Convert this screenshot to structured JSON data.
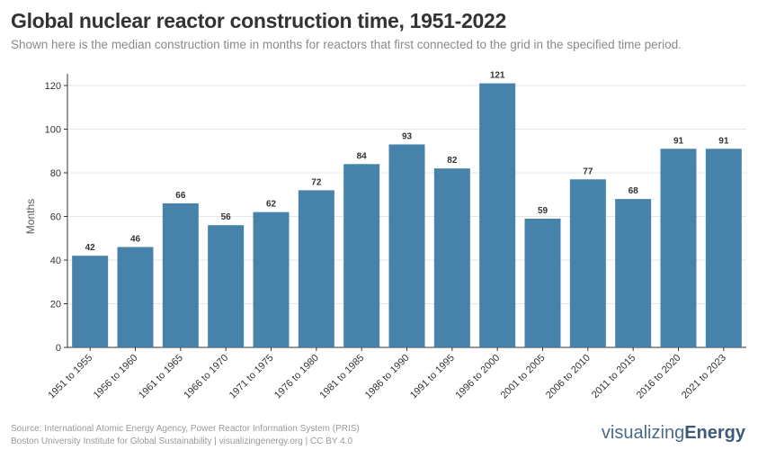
{
  "title": "Global nuclear reactor construction time, 1951-2022",
  "subtitle": "Shown here is the median construction time in months for reactors that first connected to the grid in the specified time period.",
  "source_line1": "Source: International Atomic Energy Agency, Power Reactor Information System (PRIS)",
  "source_line2": "Boston University Institute for Global Sustainability | visualizingenergy.org | CC BY 4.0",
  "logo": {
    "part1": "visualizing",
    "part2": "Energy"
  },
  "colors": {
    "bar": "#3d7ba6",
    "text": "#333333"
  },
  "chart_data": {
    "type": "bar",
    "title": "Global nuclear reactor construction time, 1951-2022",
    "xlabel": "",
    "ylabel": "Months",
    "ylim": [
      0,
      130
    ],
    "yticks": [
      0,
      20,
      40,
      60,
      80,
      100,
      120
    ],
    "grid": true,
    "categories": [
      "1951 to 1955",
      "1956 to 1960",
      "1961 to 1965",
      "1966 to 1970",
      "1971 to 1975",
      "1976 to 1980",
      "1981 to 1985",
      "1986 to 1990",
      "1991 to 1995",
      "1996 to 2000",
      "2001 to 2005",
      "2006 to 2010",
      "2011 to 2015",
      "2016 to 2020",
      "2021 to 2023"
    ],
    "values": [
      42,
      46,
      66,
      56,
      62,
      72,
      84,
      93,
      82,
      121,
      59,
      77,
      68,
      91,
      91
    ]
  }
}
